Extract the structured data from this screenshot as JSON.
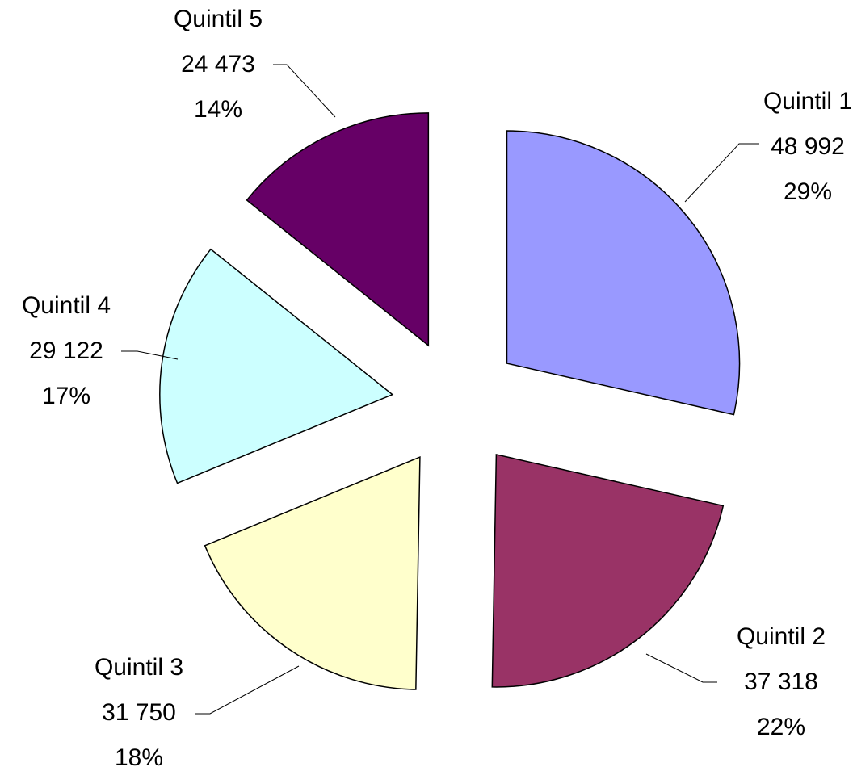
{
  "chart_data": {
    "type": "pie",
    "categories": [
      "Quintil 1",
      "Quintil 2",
      "Quintil 3",
      "Quintil 4",
      "Quintil 5"
    ],
    "values": [
      48992,
      37318,
      31750,
      29122,
      24473
    ],
    "value_labels": [
      "48 992",
      "37 318",
      "31 750",
      "29 122",
      "24 473"
    ],
    "percent_labels": [
      "29%",
      "22%",
      "18%",
      "17%",
      "14%"
    ],
    "colors": [
      "#9999ff",
      "#993366",
      "#ffffcc",
      "#ccffff",
      "#660066"
    ],
    "exploded": true
  }
}
